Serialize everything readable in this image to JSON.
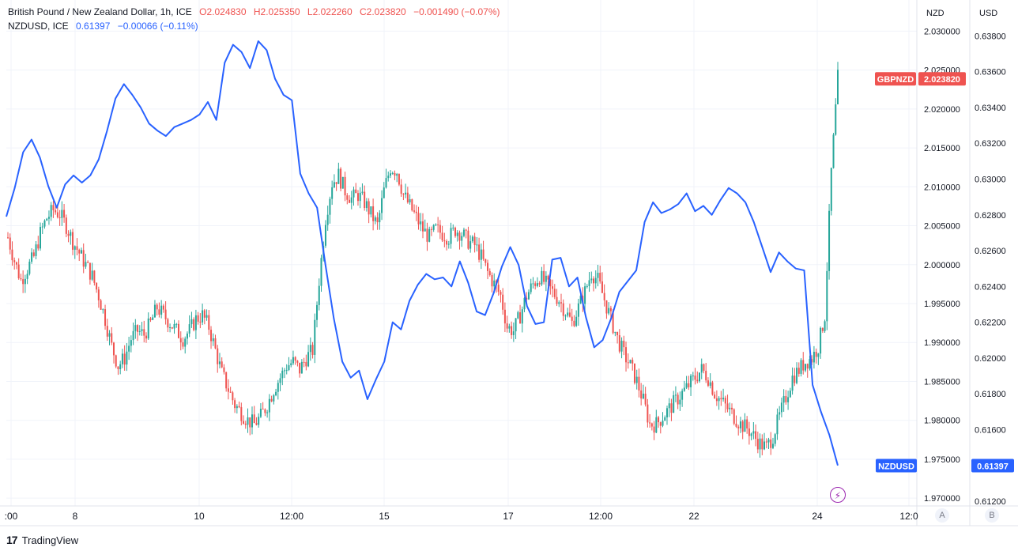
{
  "legend": {
    "main_title": "British Pound / New Zealand Dollar, 1h, ICE",
    "open": "O2.024830",
    "high": "H2.025350",
    "low": "L2.022260",
    "close": "C2.023820",
    "change": "−0.001490 (−0.07%)",
    "compare_title": "NZDUSD, ICE",
    "compare_value": "0.61397",
    "compare_change": "−0.00066 (−0.11%)"
  },
  "scales": {
    "left_unit": "NZD",
    "right_unit": "USD",
    "btn_a": "A",
    "btn_b": "B"
  },
  "footer": {
    "brand": "TradingView"
  },
  "colors": {
    "up": "#26a69a",
    "down": "#ef5350",
    "line": "#2962ff",
    "grid": "#f0f3fa",
    "text": "#131722"
  },
  "chart_data": {
    "type": "candlestick + line",
    "x_tick_labels": [
      ":00",
      "8",
      "10",
      "12:00",
      "15",
      "17",
      "12:00",
      "22",
      "24",
      "12:0"
    ],
    "left_axis": {
      "unit": "NZD",
      "ticks": [
        "2.030000",
        "2.025000",
        "2.020000",
        "2.015000",
        "2.010000",
        "2.005000",
        "2.000000",
        "1.995000",
        "1.990000",
        "1.985000",
        "1.980000",
        "1.975000",
        "1.970000"
      ],
      "range": [
        1.969,
        2.034
      ]
    },
    "right_axis": {
      "unit": "USD",
      "ticks": [
        "0.63800",
        "0.63600",
        "0.63400",
        "0.63200",
        "0.63000",
        "0.62800",
        "0.62600",
        "0.62400",
        "0.62200",
        "0.62000",
        "0.61800",
        "0.61600",
        "0.61400",
        "0.61200"
      ],
      "range": [
        0.61174,
        0.64
      ]
    },
    "series": [
      {
        "name": "GBPNZD",
        "kind": "candlestick",
        "last_label": "2.023820",
        "close_path": [
          2.0035,
          2.0005,
          1.998,
          1.9995,
          2.001,
          2.004,
          2.006,
          2.007,
          2.0065,
          2.005,
          2.003,
          2.0015,
          2.0,
          1.9985,
          1.996,
          1.993,
          1.9895,
          1.987,
          1.988,
          1.9905,
          1.9915,
          1.991,
          1.9925,
          1.9945,
          1.9935,
          1.9925,
          1.9915,
          1.9905,
          1.9915,
          1.993,
          1.9935,
          1.992,
          1.989,
          1.986,
          1.984,
          1.982,
          1.981,
          1.98,
          1.9795,
          1.9805,
          1.982,
          1.984,
          1.9855,
          1.987,
          1.9875,
          1.9865,
          1.988,
          1.989,
          1.998,
          2.006,
          2.0105,
          2.0115,
          2.0095,
          2.0085,
          2.009,
          2.008,
          2.0065,
          2.005,
          2.0095,
          2.0125,
          2.012,
          2.009,
          2.0075,
          2.006,
          2.0045,
          2.0035,
          2.0045,
          2.004,
          2.0035,
          2.0045,
          2.004,
          2.003,
          2.0025,
          2.001,
          1.999,
          1.9975,
          1.996,
          1.992,
          1.9915,
          1.9935,
          1.996,
          1.9975,
          1.9985,
          1.9975,
          1.9965,
          1.9955,
          1.994,
          1.9925,
          1.9945,
          1.9965,
          1.999,
          1.998,
          1.9955,
          1.993,
          1.9905,
          1.9885,
          1.987,
          1.985,
          1.9825,
          1.9795,
          1.9795,
          1.9805,
          1.9815,
          1.9825,
          1.9835,
          1.9845,
          1.9855,
          1.9865,
          1.9855,
          1.9835,
          1.9825,
          1.9815,
          1.9805,
          1.9795,
          1.979,
          1.978,
          1.977,
          1.9765,
          1.978,
          1.9805,
          1.983,
          1.9855,
          1.9865,
          1.9875,
          1.988,
          1.9895,
          1.9935,
          2.012,
          2.024
        ]
      },
      {
        "name": "NZDUSD",
        "kind": "line",
        "last_label": "0.61397",
        "path": [
          0.6279,
          0.6295,
          0.6315,
          0.6322,
          0.6312,
          0.6296,
          0.6284,
          0.6297,
          0.6302,
          0.6298,
          0.6302,
          0.6311,
          0.6327,
          0.6345,
          0.6353,
          0.6347,
          0.634,
          0.6331,
          0.6327,
          0.6324,
          0.6329,
          0.6331,
          0.6333,
          0.6336,
          0.6343,
          0.6333,
          0.6365,
          0.6375,
          0.6371,
          0.6362,
          0.6377,
          0.6372,
          0.6356,
          0.6347,
          0.6344,
          0.6303,
          0.6292,
          0.6284,
          0.6252,
          0.6222,
          0.6198,
          0.6189,
          0.6193,
          0.6177,
          0.6188,
          0.6198,
          0.622,
          0.6216,
          0.6232,
          0.6241,
          0.6247,
          0.6244,
          0.6245,
          0.624,
          0.6254,
          0.6242,
          0.6226,
          0.6224,
          0.6236,
          0.6251,
          0.6262,
          0.6252,
          0.6229,
          0.6219,
          0.622,
          0.6255,
          0.6256,
          0.624,
          0.6245,
          0.6223,
          0.6206,
          0.621,
          0.6222,
          0.6237,
          0.6243,
          0.6249,
          0.6276,
          0.6287,
          0.6281,
          0.6283,
          0.6286,
          0.6292,
          0.6282,
          0.6285,
          0.628,
          0.6288,
          0.6295,
          0.6292,
          0.6287,
          0.6276,
          0.6262,
          0.6248,
          0.6259,
          0.6254,
          0.625,
          0.6249,
          0.6185,
          0.617,
          0.6157,
          0.614
        ]
      }
    ]
  }
}
